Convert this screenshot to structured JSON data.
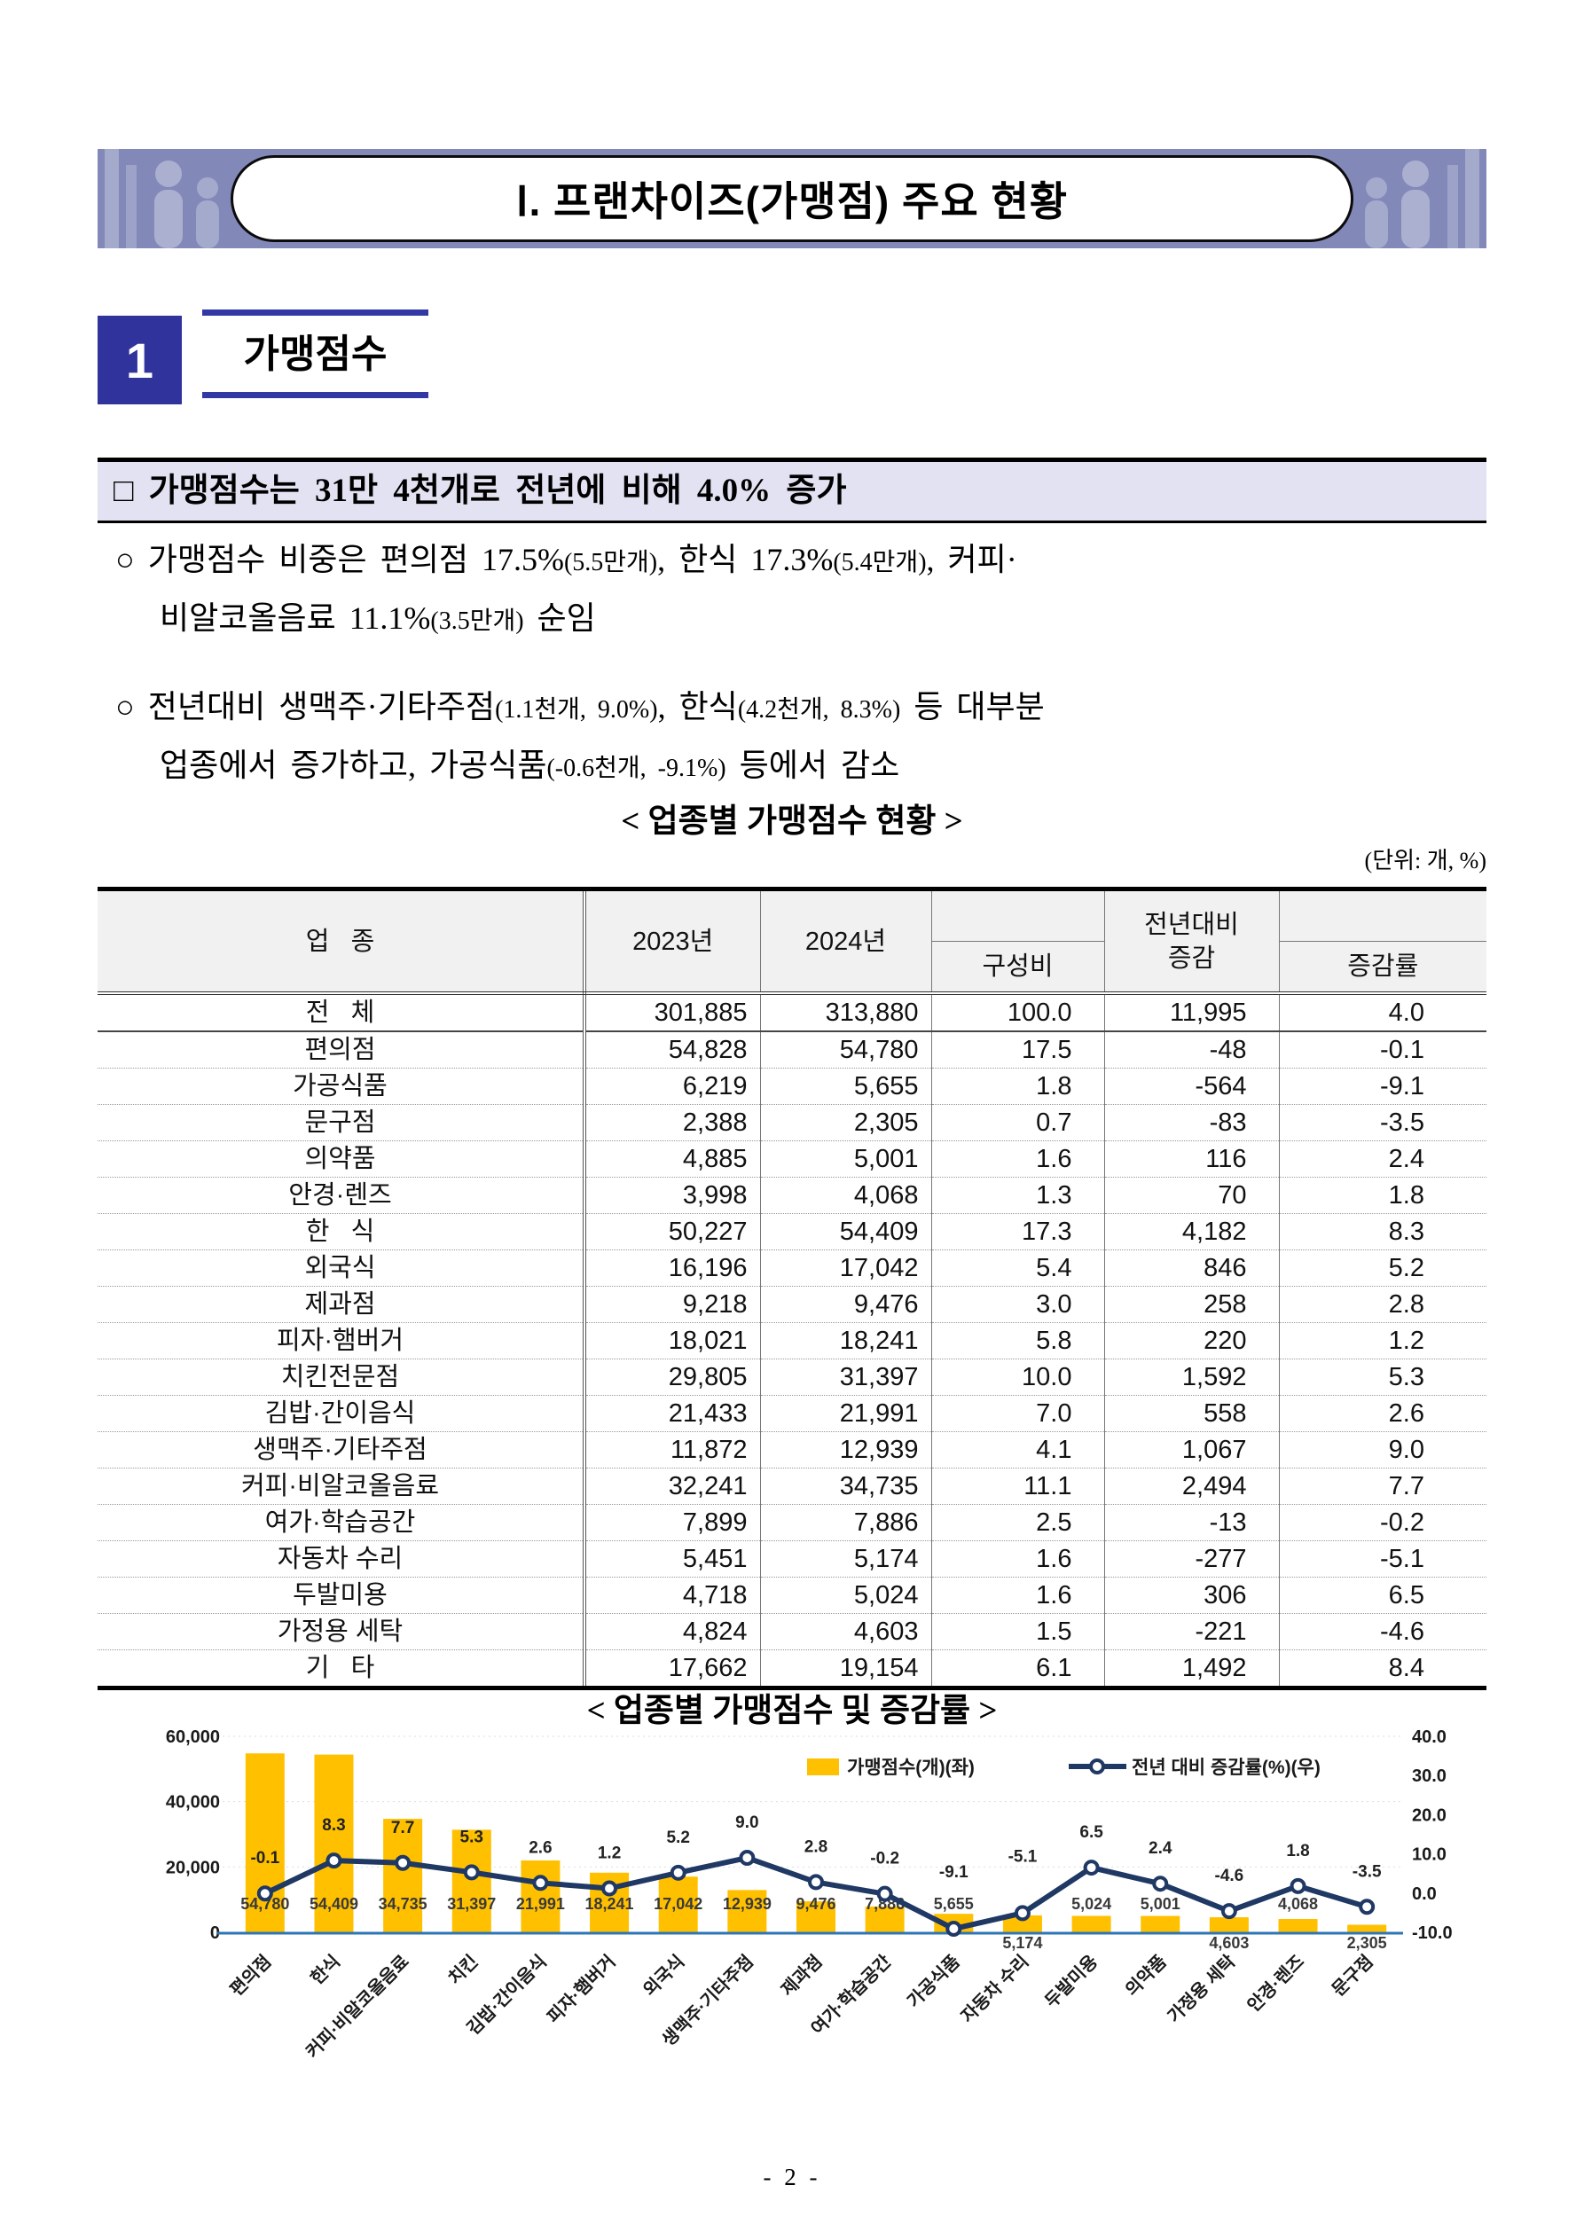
{
  "banner": {
    "title": "Ⅰ. 프랜차이즈(가맹점) 주요 현황"
  },
  "section": {
    "number": "1",
    "title": "가맹점수"
  },
  "headline": "□ 가맹점수는 31만 4천개로 전년에 비해 4.0% 증가",
  "bullets": [
    {
      "lines": [
        [
          [
            "○ 가맹점수 비중은 편의점 17.5%",
            0
          ],
          [
            "(5.5만개)",
            1
          ],
          [
            ", 한식 17.3%",
            0
          ],
          [
            "(5.4만개)",
            1
          ],
          [
            ", 커피·",
            0
          ]
        ],
        [
          [
            "비알코올음료 11.1%",
            0
          ],
          [
            "(3.5만개)",
            1
          ],
          [
            " 순임",
            0
          ]
        ]
      ]
    },
    {
      "lines": [
        [
          [
            "○ 전년대비 생맥주·기타주점",
            0
          ],
          [
            "(1.1천개, 9.0%)",
            1
          ],
          [
            ", 한식",
            0
          ],
          [
            "(4.2천개, 8.3%)",
            1
          ],
          [
            " 등 대부분",
            0
          ]
        ],
        [
          [
            "업종에서 증가하고, 가공식품",
            0
          ],
          [
            "(-0.6천개, -9.1%)",
            1
          ],
          [
            " 등에서 감소",
            0
          ]
        ]
      ]
    }
  ],
  "table": {
    "title": "< 업종별 가맹점수 현황 >",
    "unit": "(단위: 개, %)",
    "header": {
      "industry": "업   종",
      "y2023": "2023년",
      "y2024": "2024년",
      "share": "구성비",
      "diff_top": "전년대비",
      "diff": "증감",
      "rate": "증감률"
    },
    "rows": [
      [
        "전   체",
        "301,885",
        "313,880",
        "100.0",
        "11,995",
        "4.0"
      ],
      [
        "편의점",
        "54,828",
        "54,780",
        "17.5",
        "-48",
        "-0.1"
      ],
      [
        "가공식품",
        "6,219",
        "5,655",
        "1.8",
        "-564",
        "-9.1"
      ],
      [
        "문구점",
        "2,388",
        "2,305",
        "0.7",
        "-83",
        "-3.5"
      ],
      [
        "의약품",
        "4,885",
        "5,001",
        "1.6",
        "116",
        "2.4"
      ],
      [
        "안경·렌즈",
        "3,998",
        "4,068",
        "1.3",
        "70",
        "1.8"
      ],
      [
        "한   식",
        "50,227",
        "54,409",
        "17.3",
        "4,182",
        "8.3"
      ],
      [
        "외국식",
        "16,196",
        "17,042",
        "5.4",
        "846",
        "5.2"
      ],
      [
        "제과점",
        "9,218",
        "9,476",
        "3.0",
        "258",
        "2.8"
      ],
      [
        "피자·햄버거",
        "18,021",
        "18,241",
        "5.8",
        "220",
        "1.2"
      ],
      [
        "치킨전문점",
        "29,805",
        "31,397",
        "10.0",
        "1,592",
        "5.3"
      ],
      [
        "김밥·간이음식",
        "21,433",
        "21,991",
        "7.0",
        "558",
        "2.6"
      ],
      [
        "생맥주·기타주점",
        "11,872",
        "12,939",
        "4.1",
        "1,067",
        "9.0"
      ],
      [
        "커피·비알코올음료",
        "32,241",
        "34,735",
        "11.1",
        "2,494",
        "7.7"
      ],
      [
        "여가·학습공간",
        "7,899",
        "7,886",
        "2.5",
        "-13",
        "-0.2"
      ],
      [
        "자동차 수리",
        "5,451",
        "5,174",
        "1.6",
        "-277",
        "-5.1"
      ],
      [
        "두발미용",
        "4,718",
        "5,024",
        "1.6",
        "306",
        "6.5"
      ],
      [
        "가정용 세탁",
        "4,824",
        "4,603",
        "1.5",
        "-221",
        "-4.6"
      ],
      [
        "기   타",
        "17,662",
        "19,154",
        "6.1",
        "1,492",
        "8.4"
      ]
    ]
  },
  "chart_data": {
    "type": "bar",
    "combo": "bar+line",
    "title": "< 업종별 가맹점수 및 증감률 >",
    "categories": [
      "편의점",
      "한식",
      "커피·비알코올음료",
      "치킨",
      "김밥·간이음식",
      "피자·햄버거",
      "외국식",
      "생맥주·기타주점",
      "제과점",
      "여가·학습공간",
      "가공식품",
      "자동차 수리",
      "두발미용",
      "의약품",
      "가정용 세탁",
      "안경·렌즈",
      "문구점"
    ],
    "series": [
      {
        "name": "가맹점수(개)(좌)",
        "type": "bar",
        "axis": "left",
        "color": "#FFC000",
        "values": [
          54780,
          54409,
          34735,
          31397,
          21991,
          18241,
          17042,
          12939,
          9476,
          7886,
          5655,
          5174,
          5024,
          5001,
          4603,
          4068,
          2305
        ]
      },
      {
        "name": "전년 대비 증감률(%)(우)",
        "type": "line",
        "axis": "right",
        "color": "#1F3864",
        "values": [
          -0.1,
          8.3,
          7.7,
          5.3,
          2.6,
          1.2,
          5.2,
          9.0,
          2.8,
          -0.2,
          -9.1,
          -5.1,
          6.5,
          2.4,
          -4.6,
          1.8,
          -3.5
        ]
      }
    ],
    "bar_labels": [
      "54,780",
      "54,409",
      "34,735",
      "31,397",
      "21,991",
      "18,241",
      "17,042",
      "12,939",
      "9,476",
      "7,886",
      "5,655",
      "5,174",
      "5,024",
      "5,001",
      "4,603",
      "4,068",
      "2,305"
    ],
    "point_labels": [
      "-0.1",
      "8.3",
      "7.7",
      "5.3",
      "2.6",
      "1.2",
      "5.2",
      "9.0",
      "2.8",
      "-0.2",
      "-9.1",
      "-5.1",
      "6.5",
      "2.4",
      "-4.6",
      "1.8",
      "-3.5"
    ],
    "below_axis_label_indices": [
      11,
      14,
      16
    ],
    "high_offset_label_indices": [
      10,
      11
    ],
    "left_axis": {
      "min": 0,
      "max": 60000,
      "ticks": [
        "0",
        "20,000",
        "40,000",
        "60,000"
      ],
      "tick_values": [
        0,
        20000,
        40000,
        60000
      ]
    },
    "right_axis": {
      "min": -10,
      "max": 40,
      "ticks": [
        "-10.0",
        "0.0",
        "10.0",
        "20.0",
        "30.0",
        "40.0"
      ],
      "tick_values": [
        -10,
        0,
        10,
        20,
        30,
        40
      ]
    },
    "legend_position": "top-right-inside",
    "grid": "faint-dotted-horizontal",
    "axis_line_color": "#2E75B6"
  },
  "page": {
    "number_label": "- 2 -"
  }
}
